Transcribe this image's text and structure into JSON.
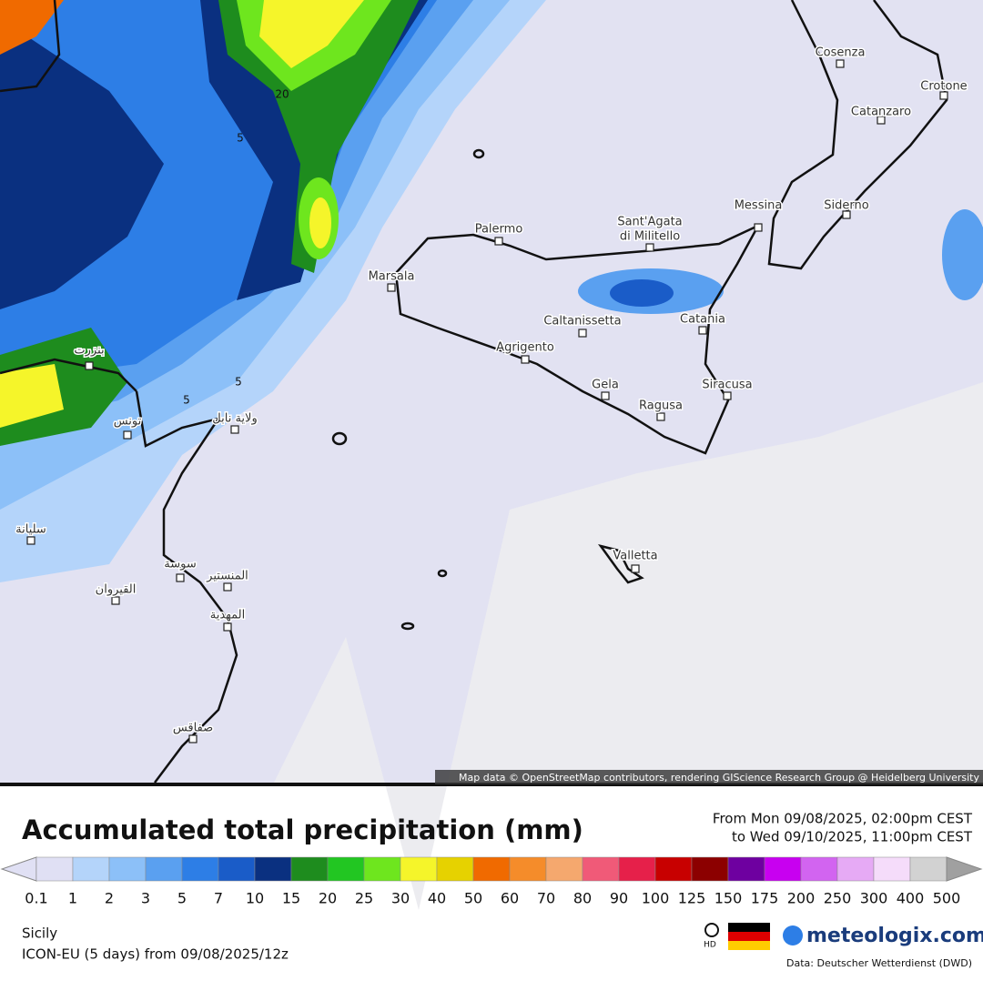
{
  "map": {
    "cities": [
      "Cosenza",
      "Crotone",
      "Catanzaro",
      "Siderno",
      "Messina",
      "Sant'Agata",
      "di Militello",
      "Palermo",
      "Marsala",
      "Caltanissetta",
      "Catania",
      "Agrigento",
      "Gela",
      "Siracusa",
      "Ragusa",
      "Valletta",
      "بنزرت",
      "تونس",
      "ولاية نابل",
      "سليانة",
      "سوسة",
      "المنستير",
      "القيروان",
      "المهدية",
      "صفاقس"
    ],
    "contour_labels": [
      "20",
      "5",
      "5",
      "5"
    ],
    "attribution": "Map data © OpenStreetMap contributors, rendering GIScience Research Group @ Heidelberg University"
  },
  "legend": {
    "title": "Accumulated total precipitation (mm)",
    "from": "From Mon 09/08/2025, 02:00pm CEST",
    "to": "to Wed 09/10/2025, 11:00pm CEST",
    "ticks": [
      0.1,
      1,
      2,
      3,
      5,
      7,
      10,
      15,
      20,
      25,
      30,
      40,
      50,
      60,
      70,
      80,
      90,
      100,
      125,
      150,
      175,
      200,
      250,
      300,
      400,
      500
    ],
    "colors": [
      "#e0e0f4",
      "#b4d4fa",
      "#8cc0f8",
      "#5aa0f0",
      "#2d7ee6",
      "#1a5cc8",
      "#0a3080",
      "#1e8c1e",
      "#22c622",
      "#6ee61e",
      "#f5f52a",
      "#e6d200",
      "#f06a00",
      "#f58c2a",
      "#f5a86e",
      "#f05a78",
      "#e6204a",
      "#c80000",
      "#8c0000",
      "#6e00a0",
      "#c800f0",
      "#d264f0",
      "#e6aaf5",
      "#f5dcfa",
      "#d2d2d2"
    ]
  },
  "footer": {
    "region": "Sicily",
    "model": "ICON-EU (5 days) from 09/08/2025/12z",
    "hd": "HD",
    "brand": "meteologix.com",
    "source": "Data: Deutscher Wetterdienst (DWD)"
  }
}
